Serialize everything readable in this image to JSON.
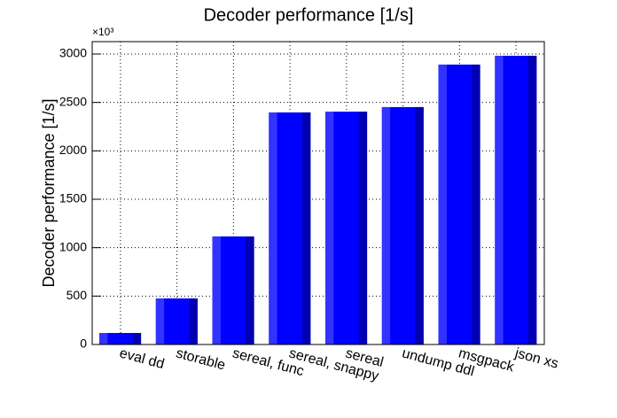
{
  "chart_data": {
    "type": "bar",
    "title": "Decoder performance [1/s]",
    "y_label": "Decoder performance [1/s]",
    "y_multiplier": "×10³",
    "categories": [
      "eval dd",
      "storable",
      "sereal, func",
      "sereal, snappy",
      "sereal",
      "undump ddl",
      "msgpack",
      "json xs"
    ],
    "values": [
      119,
      476,
      1116,
      2397,
      2405,
      2452,
      2891,
      2982
    ],
    "color": "#0000ff",
    "ylim": [
      0,
      3128
    ],
    "yticks": [
      0,
      500,
      1000,
      1500,
      2000,
      2500,
      3000
    ],
    "grid": true
  }
}
